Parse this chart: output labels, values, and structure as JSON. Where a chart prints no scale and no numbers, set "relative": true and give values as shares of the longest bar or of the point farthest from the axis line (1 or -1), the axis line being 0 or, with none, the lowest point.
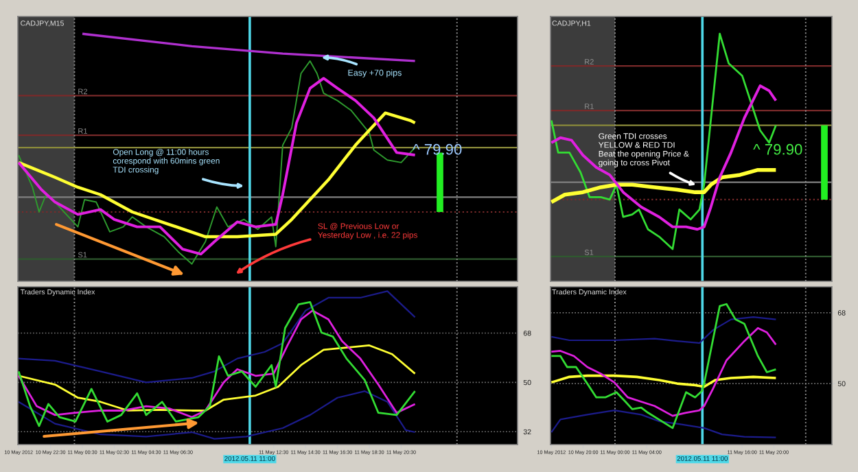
{
  "chart_data": [
    {
      "type": "line",
      "title": "CADJPY,M15",
      "relative": true,
      "xlim": [
        "2012-05-10T20:27",
        "2012-05-12T03:48"
      ],
      "series": [
        {
          "color": "#2e9b2e",
          "x": [
            "2012-05-10T20:30",
            "2012-05-10T21:22",
            "2012-05-10T21:47",
            "2012-05-10T22:13",
            "2012-05-10T22:47",
            "2012-05-10T23:38",
            "2012-05-11T00:13",
            "2012-05-11T00:38",
            "2012-05-11T01:22",
            "2012-05-11T02:13",
            "2012-05-11T03:04",
            "2012-05-11T03:38",
            "2012-05-11T04:30",
            "2012-05-11T05:38",
            "2012-05-11T06:30",
            "2012-05-11T07:22",
            "2012-05-11T08:13",
            "2012-05-11T08:56",
            "2012-05-11T09:38",
            "2012-05-11T10:38",
            "2012-05-11T11:30",
            "2012-05-11T12:22",
            "2012-05-11T12:38",
            "2012-05-11T13:04",
            "2012-05-11T13:38",
            "2012-05-11T14:13",
            "2012-05-11T14:47",
            "2012-05-11T15:13",
            "2012-05-11T15:38",
            "2012-05-11T16:30",
            "2012-05-11T17:22",
            "2012-05-11T18:30",
            "2012-05-11T18:47",
            "2012-05-11T19:38",
            "2012-05-11T20:30",
            "2012-05-11T21:22"
          ],
          "values": [
            0.51,
            0.38,
            0.28,
            0.35,
            0.32,
            0.26,
            0.22,
            0.33,
            0.32,
            0.2,
            0.22,
            0.26,
            0.22,
            0.18,
            0.12,
            0.07,
            0.16,
            0.3,
            0.22,
            0.25,
            0.21,
            0.26,
            0.14,
            0.55,
            0.62,
            0.84,
            0.89,
            0.84,
            0.76,
            0.73,
            0.69,
            0.6,
            0.53,
            0.49,
            0.48,
            0.54
          ]
        },
        {
          "color": "#ffff33",
          "x": [
            "2012-05-10T20:30",
            "2012-05-10T22:47",
            "2012-05-11T00:13",
            "2012-05-11T01:38",
            "2012-05-11T03:38",
            "2012-05-11T05:56",
            "2012-05-11T08:13",
            "2012-05-11T10:13",
            "2012-05-11T12:38",
            "2012-05-11T13:38",
            "2012-05-11T15:56",
            "2012-05-11T17:38",
            "2012-05-11T19:30",
            "2012-05-11T21:04",
            "2012-05-11T21:22"
          ],
          "values": [
            0.48,
            0.42,
            0.38,
            0.35,
            0.28,
            0.23,
            0.18,
            0.18,
            0.19,
            0.25,
            0.41,
            0.55,
            0.68,
            0.65,
            0.64
          ]
        },
        {
          "color": "#e020e0",
          "x": [
            "2012-05-10T20:30",
            "2012-05-10T21:56",
            "2012-05-10T22:47",
            "2012-05-11T00:13",
            "2012-05-11T01:38",
            "2012-05-11T02:30",
            "2012-05-11T03:56",
            "2012-05-11T05:22",
            "2012-05-11T06:47",
            "2012-05-11T07:56",
            "2012-05-11T08:47",
            "2012-05-11T10:13",
            "2012-05-11T11:22",
            "2012-05-11T12:38",
            "2012-05-11T13:04",
            "2012-05-11T13:56",
            "2012-05-11T14:47",
            "2012-05-11T15:38",
            "2012-05-11T16:30",
            "2012-05-11T17:38",
            "2012-05-11T18:47",
            "2012-05-11T20:13",
            "2012-05-11T21:22"
          ],
          "values": [
            0.48,
            0.37,
            0.32,
            0.27,
            0.29,
            0.25,
            0.22,
            0.22,
            0.13,
            0.11,
            0.16,
            0.24,
            0.22,
            0.23,
            0.35,
            0.64,
            0.78,
            0.82,
            0.78,
            0.73,
            0.66,
            0.52,
            0.51
          ]
        },
        {
          "color": "#b030d0",
          "x": [
            "2012-05-11T00:30",
            "2012-05-11T07:22",
            "2012-05-11T13:04",
            "2012-05-11T21:22"
          ],
          "values": [
            1,
            0.95,
            0.92,
            0.89
          ]
        },
        {
          "color": "#22ee22",
          "x": [
            "2012-05-11T22:56",
            "2012-05-11T22:56"
          ],
          "values": [
            0.28,
            0.52
          ]
        }
      ],
      "ref_lines": [
        {
          "axis": "y",
          "value": 0.75,
          "label": "R2",
          "color": "#7a2a2a"
        },
        {
          "axis": "y",
          "value": 0.59,
          "label": "R1",
          "color": "#7a2a2a"
        },
        {
          "axis": "y",
          "value": 0.54,
          "color": "#8a8a3a"
        },
        {
          "axis": "y",
          "value": 0.34,
          "color": "#808080"
        },
        {
          "axis": "y",
          "value": 0.28,
          "color": "#7a2a2a",
          "line_style": "dotted"
        },
        {
          "axis": "y",
          "value": 0.09,
          "label": "S1",
          "color": "#2f5a2f"
        },
        {
          "axis": "x",
          "value": "2012-05-11T00:00",
          "color": "#909090",
          "line_style": "dotted"
        },
        {
          "axis": "x",
          "value": "2012-05-12T00:00",
          "color": "#909090",
          "line_style": "dotted"
        },
        {
          "axis": "x",
          "value": "2012-05-11T11:00",
          "color": "#4fd8e8"
        }
      ],
      "bands": [
        {
          "axis": "x",
          "from": "2012-05-10T20:27",
          "to": "2012-05-11T00:00",
          "color": "#3c3c3c"
        }
      ],
      "annotations": [
        "Easy +70 pips",
        "Open Long @ 11:00 hours\ncorespond with 60mins green\nTDI crossing",
        "SL @ Previous Low or\nYesterday Low , i.e. 22 pips",
        "^ 79.90"
      ]
    },
    {
      "type": "line",
      "title": "Traders Dynamic Index",
      "xlim": [
        "2012-05-10T20:27",
        "2012-05-12T03:48"
      ],
      "ylim": [
        27.3,
        84.9
      ],
      "yticks": [
        32,
        50,
        68
      ],
      "grid": "y",
      "xticks": [
        {
          "value": "2012-05-10T20:30",
          "label": "10 May 2012"
        },
        {
          "value": "2012-05-10T22:30",
          "label": "10 May 22:30"
        },
        {
          "value": "2012-05-11T00:30",
          "label": "11 May 00:30"
        },
        {
          "value": "2012-05-11T02:30",
          "label": "11 May 02:30"
        },
        {
          "value": "2012-05-11T04:30",
          "label": "11 May 04:30"
        },
        {
          "value": "2012-05-11T06:30",
          "label": "11 May 06:30"
        },
        {
          "value": "2012-05-11T12:30",
          "label": "11 May 12:30"
        },
        {
          "value": "2012-05-11T14:30",
          "label": "11 May 14:30"
        },
        {
          "value": "2012-05-11T16:30",
          "label": "11 May 16:30"
        },
        {
          "value": "2012-05-11T18:30",
          "label": "11 May 18:30"
        },
        {
          "value": "2012-05-11T20:30",
          "label": "11 May 20:30"
        }
      ],
      "series": [
        {
          "color": "#1c1c8c",
          "x": [
            "2012-05-10T20:30",
            "2012-05-10T22:47",
            "2012-05-11T01:38",
            "2012-05-11T04:30",
            "2012-05-11T07:22",
            "2012-05-11T08:47",
            "2012-05-11T10:13",
            "2012-05-11T11:56",
            "2012-05-11T13:04",
            "2012-05-11T14:30",
            "2012-05-11T15:56",
            "2012-05-11T17:56",
            "2012-05-11T19:38",
            "2012-05-11T21:22"
          ],
          "values": [
            58.7,
            57.9,
            54.0,
            50.0,
            51.6,
            54.0,
            58.7,
            61.1,
            64.3,
            76.2,
            80.9,
            80.9,
            83.3,
            73.8
          ]
        },
        {
          "color": "#1c1c8c",
          "x": [
            "2012-05-10T20:30",
            "2012-05-10T22:47",
            "2012-05-11T01:38",
            "2012-05-11T04:30",
            "2012-05-11T07:22",
            "2012-05-11T08:47",
            "2012-05-11T10:47",
            "2012-05-11T13:04",
            "2012-05-11T14:47",
            "2012-05-11T16:30",
            "2012-05-11T18:13",
            "2012-05-11T19:38",
            "2012-05-11T20:47",
            "2012-05-11T21:22"
          ],
          "values": [
            42.9,
            34.9,
            31.0,
            30.2,
            31.8,
            29.4,
            30.2,
            33.3,
            38.1,
            44.4,
            46.8,
            42.9,
            32.6,
            31.8
          ]
        },
        {
          "color": "#ffff33",
          "x": [
            "2012-05-10T20:30",
            "2012-05-10T22:47",
            "2012-05-11T00:13",
            "2012-05-11T01:38",
            "2012-05-11T03:22",
            "2012-05-11T05:22",
            "2012-05-11T07:22",
            "2012-05-11T08:13",
            "2012-05-11T09:22",
            "2012-05-11T11:22",
            "2012-05-11T12:47",
            "2012-05-11T14:13",
            "2012-05-11T15:38",
            "2012-05-11T17:04",
            "2012-05-11T18:30",
            "2012-05-11T19:56",
            "2012-05-11T21:22"
          ],
          "values": [
            52.4,
            49.2,
            44.4,
            42.9,
            39.7,
            40.0,
            39.7,
            39.7,
            43.7,
            45.2,
            48.4,
            56.3,
            61.9,
            62.7,
            63.5,
            60.3,
            53.2
          ]
        },
        {
          "color": "#e020e0",
          "x": [
            "2012-05-10T20:30",
            "2012-05-10T21:38",
            "2012-05-10T22:47",
            "2012-05-11T00:04",
            "2012-05-11T01:38",
            "2012-05-11T03:04",
            "2012-05-11T04:30",
            "2012-05-11T05:56",
            "2012-05-11T07:22",
            "2012-05-11T08:13",
            "2012-05-11T09:22",
            "2012-05-11T10:13",
            "2012-05-11T11:22",
            "2012-05-11T12:30",
            "2012-05-11T13:22",
            "2012-05-11T14:13",
            "2012-05-11T14:56",
            "2012-05-11T15:56",
            "2012-05-11T16:47",
            "2012-05-11T17:56",
            "2012-05-11T19:04",
            "2012-05-11T20:13",
            "2012-05-11T21:22"
          ],
          "values": [
            52.4,
            41.3,
            38.1,
            38.9,
            39.7,
            39.7,
            41.3,
            40.5,
            37.3,
            39.7,
            50.0,
            54.8,
            52.4,
            53.2,
            63.5,
            73.0,
            76.2,
            73.0,
            65.1,
            58.7,
            49.2,
            38.9,
            42.1
          ]
        },
        {
          "color": "#33dd33",
          "x": [
            "2012-05-10T20:30",
            "2012-05-10T21:13",
            "2012-05-10T21:47",
            "2012-05-10T22:22",
            "2012-05-10T23:04",
            "2012-05-11T00:04",
            "2012-05-11T01:04",
            "2012-05-11T02:04",
            "2012-05-11T02:56",
            "2012-05-11T03:56",
            "2012-05-11T04:30",
            "2012-05-11T05:30",
            "2012-05-11T06:22",
            "2012-05-11T07:47",
            "2012-05-11T08:30",
            "2012-05-11T09:04",
            "2012-05-11T09:38",
            "2012-05-11T10:30",
            "2012-05-11T11:22",
            "2012-05-11T12:22",
            "2012-05-11T12:38",
            "2012-05-11T13:13",
            "2012-05-11T14:04",
            "2012-05-11T14:47",
            "2012-05-11T15:30",
            "2012-05-11T16:13",
            "2012-05-11T17:04",
            "2012-05-11T18:13",
            "2012-05-11T19:04",
            "2012-05-11T20:13",
            "2012-05-11T21:22"
          ],
          "values": [
            54.0,
            41.3,
            34.1,
            42.1,
            37.3,
            35.7,
            47.6,
            35.7,
            38.1,
            46.0,
            38.1,
            42.9,
            35.7,
            37.3,
            41.3,
            59.5,
            52.4,
            54.0,
            48.4,
            56.3,
            48.4,
            69.8,
            78.5,
            79.3,
            68.2,
            66.7,
            58.7,
            50.8,
            38.9,
            38.1,
            46.8
          ]
        }
      ],
      "ref_lines": [
        {
          "axis": "x",
          "value": "2012-05-11T00:00",
          "color": "#909090",
          "line_style": "dotted"
        },
        {
          "axis": "x",
          "value": "2012-05-12T00:00",
          "color": "#909090",
          "line_style": "dotted"
        },
        {
          "axis": "x",
          "value": "2012-05-11T11:00",
          "color": "#4fd8e8"
        }
      ],
      "annotations": [
        "2012.05.11 11:00"
      ]
    },
    {
      "type": "line",
      "title": "CADJPY,H1",
      "relative": true,
      "xlim": [
        "2012-05-10T15:53",
        "2012-05-12T03:18"
      ],
      "series": [
        {
          "color": "#33dd33",
          "x": [
            "2012-05-10T16:00",
            "2012-05-10T16:51",
            "2012-05-10T18:16",
            "2012-05-10T19:40",
            "2012-05-10T20:48",
            "2012-05-10T22:13",
            "2012-05-10T23:20",
            "2012-05-11T00:11",
            "2012-05-11T01:02",
            "2012-05-11T02:10",
            "2012-05-11T03:01",
            "2012-05-11T04:09",
            "2012-05-11T05:34",
            "2012-05-11T07:15",
            "2012-05-11T08:06",
            "2012-05-11T09:31",
            "2012-05-11T10:38",
            "2012-05-11T11:13",
            "2012-05-11T13:11",
            "2012-05-11T14:19",
            "2012-05-11T16:01",
            "2012-05-11T18:16",
            "2012-05-11T19:24",
            "2012-05-11T20:15"
          ],
          "values": [
            0.65,
            0.52,
            0.52,
            0.44,
            0.34,
            0.34,
            0.33,
            0.39,
            0.26,
            0.27,
            0.29,
            0.21,
            0.18,
            0.13,
            0.29,
            0.25,
            0.29,
            0.39,
            1,
            0.88,
            0.83,
            0.61,
            0.56,
            0.63
          ]
        },
        {
          "color": "#ffff33",
          "x": [
            "2012-05-10T16:00",
            "2012-05-10T17:41",
            "2012-05-10T19:57",
            "2012-05-10T22:13",
            "2012-05-11T00:11",
            "2012-05-11T02:10",
            "2012-05-11T04:59",
            "2012-05-11T07:49",
            "2012-05-11T10:05",
            "2012-05-11T11:13",
            "2012-05-11T12:04",
            "2012-05-11T13:28",
            "2012-05-11T15:44",
            "2012-05-11T17:59",
            "2012-05-11T20:15"
          ],
          "values": [
            0.32,
            0.35,
            0.36,
            0.38,
            0.39,
            0.39,
            0.38,
            0.37,
            0.36,
            0.36,
            0.39,
            0.42,
            0.43,
            0.45,
            0.45
          ]
        },
        {
          "color": "#e020e0",
          "x": [
            "2012-05-10T16:00",
            "2012-05-10T17:08",
            "2012-05-10T18:32",
            "2012-05-10T19:57",
            "2012-05-10T21:39",
            "2012-05-10T23:20",
            "2012-05-11T01:02",
            "2012-05-11T03:18",
            "2012-05-11T05:34",
            "2012-05-11T07:15",
            "2012-05-11T08:57",
            "2012-05-11T10:22",
            "2012-05-11T11:13",
            "2012-05-11T12:04",
            "2012-05-11T13:11",
            "2012-05-11T14:36",
            "2012-05-11T16:17",
            "2012-05-11T18:16",
            "2012-05-11T19:24",
            "2012-05-11T20:15"
          ],
          "values": [
            0.56,
            0.58,
            0.57,
            0.51,
            0.46,
            0.43,
            0.36,
            0.3,
            0.26,
            0.22,
            0.22,
            0.21,
            0.22,
            0.3,
            0.42,
            0.52,
            0.66,
            0.79,
            0.77,
            0.73
          ]
        },
        {
          "color": "#22ee22",
          "x": [
            "2012-05-12T02:21",
            "2012-05-12T02:21"
          ],
          "values": [
            0.33,
            0.63
          ]
        }
      ],
      "ref_lines": [
        {
          "axis": "y",
          "value": 0.87,
          "label": "R2",
          "color": "#7a2a2a"
        },
        {
          "axis": "y",
          "value": 0.69,
          "label": "R1",
          "color": "#7a2a2a"
        },
        {
          "axis": "y",
          "value": 0.63,
          "color": "#8a8a3a"
        },
        {
          "axis": "y",
          "value": 0.4,
          "color": "#808080"
        },
        {
          "axis": "y",
          "value": 0.33,
          "color": "#7a2a2a",
          "line_style": "dotted"
        },
        {
          "axis": "y",
          "value": 0.1,
          "label": "S1",
          "color": "#2f5a2f"
        },
        {
          "axis": "x",
          "value": "2012-05-11T00:00",
          "color": "#909090",
          "line_style": "dotted"
        },
        {
          "axis": "x",
          "value": "2012-05-12T00:00",
          "color": "#909090",
          "line_style": "dotted"
        },
        {
          "axis": "x",
          "value": "2012-05-11T11:00",
          "color": "#4fd8e8"
        }
      ],
      "bands": [
        {
          "axis": "x",
          "from": "2012-05-10T15:53",
          "to": "2012-05-11T00:00",
          "color": "#3c3c3c"
        }
      ],
      "annotations": [
        "Green TDI crosses\nYELLOW & RED TDI\nBeat the opening Price &\ngoing to cross Pivot",
        "^ 79.90"
      ]
    },
    {
      "type": "line",
      "title": "Traders Dynamic Index",
      "xlim": [
        "2012-05-10T15:53",
        "2012-05-12T03:18"
      ],
      "ylim": [
        34.5,
        74.6
      ],
      "yticks": [
        50,
        68
      ],
      "grid": "y",
      "xticks": [
        {
          "value": "2012-05-10T16:00",
          "label": "10 May 2012"
        },
        {
          "value": "2012-05-10T20:00",
          "label": "10 May 20:00"
        },
        {
          "value": "2012-05-11T00:00",
          "label": "11 May 00:00"
        },
        {
          "value": "2012-05-11T04:00",
          "label": "11 May 04:00"
        },
        {
          "value": "2012-05-11T16:00",
          "label": "11 May 16:00"
        },
        {
          "value": "2012-05-11T20:00",
          "label": "11 May 20:00"
        }
      ],
      "series": [
        {
          "color": "#1c1c8c",
          "x": [
            "2012-05-10T16:00",
            "2012-05-10T18:16",
            "2012-05-10T23:55",
            "2012-05-11T04:59",
            "2012-05-11T07:49",
            "2012-05-11T10:38",
            "2012-05-11T12:20",
            "2012-05-11T14:36",
            "2012-05-11T17:25",
            "2012-05-11T20:15"
          ],
          "values": [
            61.9,
            61.0,
            61.0,
            61.4,
            60.8,
            60.3,
            63.6,
            66.3,
            66.9,
            66.3
          ]
        },
        {
          "color": "#1c1c8c",
          "x": [
            "2012-05-10T16:00",
            "2012-05-10T17:08",
            "2012-05-10T20:31",
            "2012-05-10T23:55",
            "2012-05-11T03:18",
            "2012-05-11T05:34",
            "2012-05-11T07:49",
            "2012-05-11T11:13",
            "2012-05-11T13:28",
            "2012-05-11T16:17",
            "2012-05-11T20:15"
          ],
          "values": [
            37.6,
            40.9,
            42.1,
            43.2,
            42.1,
            40.4,
            39.8,
            38.7,
            37.1,
            36.5,
            36.3
          ]
        },
        {
          "color": "#ffff33",
          "x": [
            "2012-05-10T16:00",
            "2012-05-10T18:16",
            "2012-05-10T20:31",
            "2012-05-10T23:55",
            "2012-05-11T02:44",
            "2012-05-11T05:34",
            "2012-05-11T07:49",
            "2012-05-11T10:05",
            "2012-05-11T11:13",
            "2012-05-11T12:37",
            "2012-05-11T14:36",
            "2012-05-11T17:25",
            "2012-05-11T20:15"
          ],
          "values": [
            50.3,
            51.7,
            52.0,
            52.0,
            51.7,
            50.9,
            50.0,
            49.6,
            49.2,
            50.9,
            51.4,
            51.7,
            51.4
          ]
        },
        {
          "color": "#e020e0",
          "x": [
            "2012-05-10T16:00",
            "2012-05-10T17:08",
            "2012-05-10T18:50",
            "2012-05-10T20:31",
            "2012-05-10T22:13",
            "2012-05-10T23:55",
            "2012-05-11T01:36",
            "2012-05-11T03:18",
            "2012-05-11T04:59",
            "2012-05-11T07:15",
            "2012-05-11T08:57",
            "2012-05-11T10:38",
            "2012-05-11T11:13",
            "2012-05-11T12:20",
            "2012-05-11T14:02",
            "2012-05-11T16:17",
            "2012-05-11T17:59",
            "2012-05-11T19:07",
            "2012-05-11T20:15"
          ],
          "values": [
            58.1,
            58.3,
            57.0,
            54.2,
            52.5,
            50.3,
            46.5,
            45.4,
            44.3,
            41.8,
            42.6,
            43.2,
            44.3,
            48.7,
            55.9,
            60.8,
            64.1,
            63.0,
            59.9
          ]
        },
        {
          "color": "#33dd33",
          "x": [
            "2012-05-10T16:00",
            "2012-05-10T17:08",
            "2012-05-10T17:59",
            "2012-05-10T19:06",
            "2012-05-10T20:31",
            "2012-05-10T21:39",
            "2012-05-10T22:47",
            "2012-05-11T00:11",
            "2012-05-11T01:19",
            "2012-05-11T02:10",
            "2012-05-11T03:18",
            "2012-05-11T04:09",
            "2012-05-11T07:15",
            "2012-05-11T08:57",
            "2012-05-11T10:05",
            "2012-05-11T10:56",
            "2012-05-11T11:13",
            "2012-05-11T13:11",
            "2012-05-11T14:02",
            "2012-05-11T15:10",
            "2012-05-11T16:17",
            "2012-05-11T17:59",
            "2012-05-11T19:07",
            "2012-05-11T20:15"
          ],
          "values": [
            57.0,
            57.0,
            54.2,
            54.2,
            50.0,
            46.5,
            46.5,
            47.8,
            45.4,
            43.5,
            43.9,
            42.6,
            38.7,
            47.8,
            46.5,
            48.1,
            50.0,
            69.7,
            70.2,
            66.3,
            65.2,
            57.0,
            52.9,
            53.6
          ]
        }
      ],
      "ref_lines": [
        {
          "axis": "x",
          "value": "2012-05-11T00:00",
          "color": "#909090",
          "line_style": "dotted"
        },
        {
          "axis": "x",
          "value": "2012-05-12T00:00",
          "color": "#909090",
          "line_style": "dotted"
        },
        {
          "axis": "x",
          "value": "2012-05-11T11:00",
          "color": "#4fd8e8"
        }
      ],
      "annotations": [
        "2012.05.11 11:00"
      ]
    }
  ]
}
